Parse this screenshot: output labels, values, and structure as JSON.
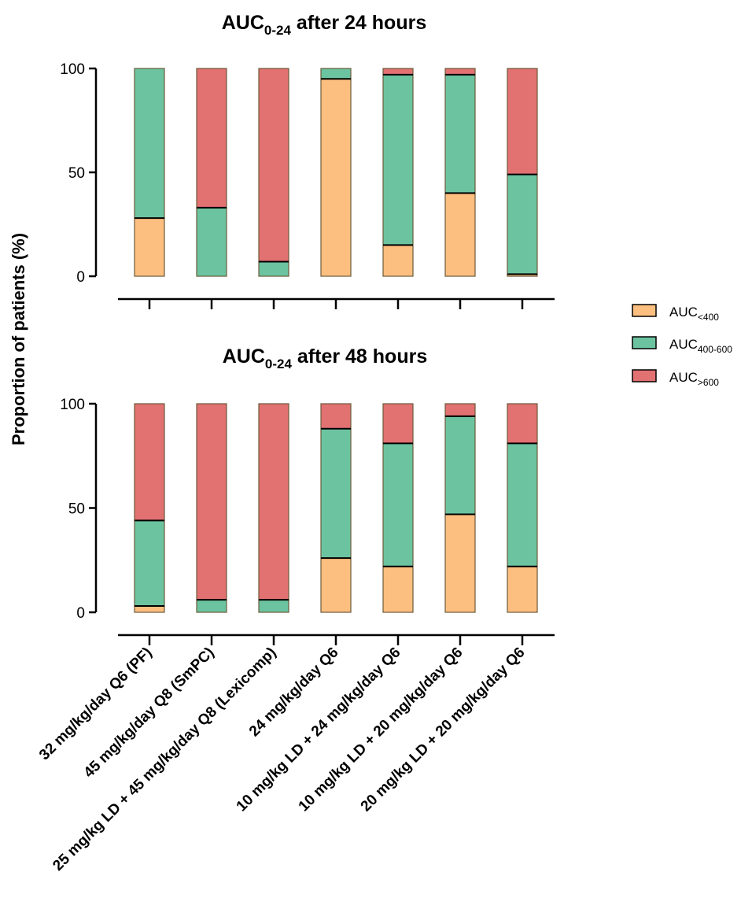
{
  "chart_data": {
    "type": "bar",
    "stacked": true,
    "ylabel": "Proportion of patients (%)",
    "ylim": [
      0,
      100
    ],
    "yticks": [
      "0",
      "50",
      "100"
    ],
    "categories": [
      "32 mg/kg/day Q6 (PF)",
      "45 mg/kg/day Q8 (SmPC)",
      "25 mg/kg LD + 45 mg/kg/day Q8 (Lexicomp)",
      "24 mg/kg/day Q6",
      "10 mg/kg LD + 24 mg/kg/day Q6",
      "10 mg/kg LD + 20 mg/kg/day Q6",
      "20 mg/kg LD + 20 mg/kg/day Q6"
    ],
    "legend": {
      "position": "right",
      "entries": [
        {
          "base": "AUC",
          "sub": "<400",
          "color": "#FDBF80"
        },
        {
          "base": "AUC",
          "sub": "400-600",
          "color": "#6CC3A0"
        },
        {
          "base": "AUC",
          "sub": ">600",
          "color": "#E27172"
        }
      ]
    },
    "panels": [
      {
        "title_base": "AUC",
        "title_sub": "0-24",
        "title_rest": " after 24 hours",
        "series": [
          {
            "values": [
              28,
              0,
              0,
              95,
              15,
              40,
              1
            ]
          },
          {
            "values": [
              72,
              33,
              7,
              5,
              82,
              57,
              48
            ]
          },
          {
            "values": [
              0,
              67,
              93,
              0,
              3,
              3,
              51
            ]
          }
        ]
      },
      {
        "title_base": "AUC",
        "title_sub": "0-24",
        "title_rest": " after 48 hours",
        "series": [
          {
            "values": [
              3,
              0,
              0,
              26,
              22,
              47,
              22
            ]
          },
          {
            "values": [
              41,
              6,
              6,
              62,
              59,
              47,
              59
            ]
          },
          {
            "values": [
              56,
              94,
              94,
              12,
              19,
              6,
              19
            ]
          }
        ]
      }
    ]
  }
}
